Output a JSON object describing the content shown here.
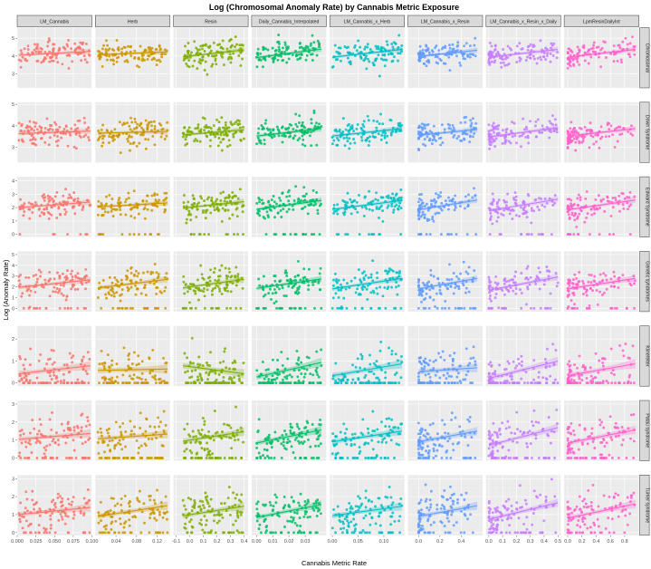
{
  "chart_data": {
    "type": "scatter",
    "title": "Log (Chromosomal Anomaly Rate) by Cannabis Metric Exposure",
    "xlabel": "Cannabis Metric Rate",
    "ylabel": "Log (Anomaly Rate)",
    "columns": [
      {
        "name": "LM_Cannabis",
        "color": "#F8766D",
        "xlim": [
          0,
          0.1
        ],
        "ticks": [
          0.0,
          0.025,
          0.05,
          0.075,
          0.1
        ],
        "tick_labels": [
          "0.000",
          "0.025",
          "0.050",
          "0.075",
          "0.100"
        ],
        "data_xrange": [
          0.002,
          0.098
        ]
      },
      {
        "name": "Herb",
        "color": "#CD9600",
        "xlim": [
          0.0,
          0.145
        ],
        "ticks": [
          0.04,
          0.08,
          0.12
        ],
        "tick_labels": [
          "0.04",
          "0.08",
          "0.12"
        ],
        "data_xrange": [
          0.005,
          0.14
        ]
      },
      {
        "name": "Resin",
        "color": "#7CAE00",
        "xlim": [
          -0.12,
          0.43
        ],
        "ticks": [
          -0.1,
          0.0,
          0.1,
          0.2,
          0.3,
          0.4
        ],
        "tick_labels": [
          "-0.1",
          "0.0",
          "0.1",
          "0.2",
          "0.3",
          "0.4"
        ],
        "data_xrange": [
          -0.05,
          0.4
        ]
      },
      {
        "name": "Daily_Cannabis_Interpolated",
        "color": "#00BE67",
        "xlim": [
          -0.003,
          0.043
        ],
        "ticks": [
          0.0,
          0.01,
          0.02,
          0.03
        ],
        "tick_labels": [
          "0.00",
          "0.01",
          "0.02",
          "0.03"
        ],
        "data_xrange": [
          0.0,
          0.04
        ]
      },
      {
        "name": "LM_Cannabis_x_Herb",
        "color": "#00BFC4",
        "xlim": [
          -0.005,
          0.14
        ],
        "ticks": [
          0.0,
          0.05,
          0.1
        ],
        "tick_labels": [
          "0.00",
          "0.05",
          "0.10"
        ],
        "data_xrange": [
          0.0,
          0.135
        ]
      },
      {
        "name": "LM_Cannabis_x_Resin",
        "color": "#619CFF",
        "xlim": [
          -0.1,
          0.6
        ],
        "ticks": [
          0.0,
          0.2,
          0.4
        ],
        "tick_labels": [
          "0.0",
          "0.2",
          "0.4"
        ],
        "data_xrange": [
          0.0,
          0.55
        ]
      },
      {
        "name": "LM_Cannabis_x_Resin_x_Daily",
        "color": "#C77CFF",
        "xlim": [
          -0.02,
          0.52
        ],
        "ticks": [
          0.0,
          0.1,
          0.2,
          0.3,
          0.4,
          0.5
        ],
        "tick_labels": [
          "0.0",
          "0.1",
          "0.2",
          "0.3",
          "0.4",
          "0.5"
        ],
        "data_xrange": [
          0.0,
          0.5
        ]
      },
      {
        "name": "LpmResinDailyInt",
        "color": "#FF61CC",
        "xlim": [
          -0.05,
          1.0
        ],
        "ticks": [
          0.0,
          0.2,
          0.4,
          0.6,
          0.8
        ],
        "tick_labels": [
          "0.0",
          "0.2",
          "0.4",
          "0.6",
          "0.8"
        ],
        "data_xrange": [
          0.0,
          0.95
        ]
      }
    ],
    "rows": [
      {
        "name": "Chromosomal",
        "ylim": [
          2.2,
          5.6
        ],
        "ticks": [
          3,
          4,
          5
        ],
        "center": 4.15,
        "spread": 0.4,
        "floor": null
      },
      {
        "name": "Down Syndrome",
        "ylim": [
          2.3,
          5.1
        ],
        "ticks": [
          3,
          4,
          5
        ],
        "center": 3.7,
        "spread": 0.35,
        "floor": null
      },
      {
        "name": "Edward Syndrome",
        "ylim": [
          -0.2,
          4.3
        ],
        "ticks": [
          0,
          1,
          2,
          3,
          4
        ],
        "center": 2.2,
        "spread": 0.55,
        "floor": 0
      },
      {
        "name": "Genetic syndromes",
        "ylim": [
          -0.3,
          5.3
        ],
        "ticks": [
          0,
          1,
          2,
          3,
          4,
          5
        ],
        "center": 2.3,
        "spread": 0.8,
        "floor": 0
      },
      {
        "name": "Klinefelter",
        "ylim": [
          -0.15,
          2.6
        ],
        "ticks": [
          0,
          1,
          2
        ],
        "center": 0.6,
        "spread": 0.55,
        "floor": 0
      },
      {
        "name": "Patau syndrome",
        "ylim": [
          -0.15,
          3.2
        ],
        "ticks": [
          0,
          1,
          2,
          3
        ],
        "center": 1.2,
        "spread": 0.6,
        "floor": 0
      },
      {
        "name": "Turner syndrome",
        "ylim": [
          -0.15,
          3.2
        ],
        "ticks": [
          0,
          1,
          2,
          3
        ],
        "center": 1.2,
        "spread": 0.6,
        "floor": 0
      }
    ],
    "slopes": [
      [
        0.25,
        0.18,
        0.45,
        0.55,
        0.5,
        0.4,
        0.5,
        0.5
      ],
      [
        0.15,
        0.1,
        0.3,
        0.45,
        0.45,
        0.35,
        0.55,
        0.45
      ],
      [
        0.35,
        0.25,
        0.4,
        0.55,
        0.55,
        0.6,
        0.7,
        0.6
      ],
      [
        0.4,
        0.45,
        0.45,
        0.5,
        0.55,
        0.55,
        0.7,
        0.55
      ],
      [
        0.3,
        0.05,
        -0.3,
        0.55,
        0.45,
        0.15,
        0.65,
        0.45
      ],
      [
        0.25,
        0.2,
        0.4,
        0.55,
        0.45,
        0.45,
        0.75,
        0.55
      ],
      [
        0.3,
        0.45,
        0.4,
        0.55,
        0.4,
        0.45,
        0.7,
        0.6
      ]
    ],
    "points_per_panel": 110,
    "zero_fraction": [
      0,
      0,
      0.1,
      0.15,
      0.35,
      0.25,
      0.2
    ],
    "smoother": "linear fit with 95% confidence ribbon"
  }
}
